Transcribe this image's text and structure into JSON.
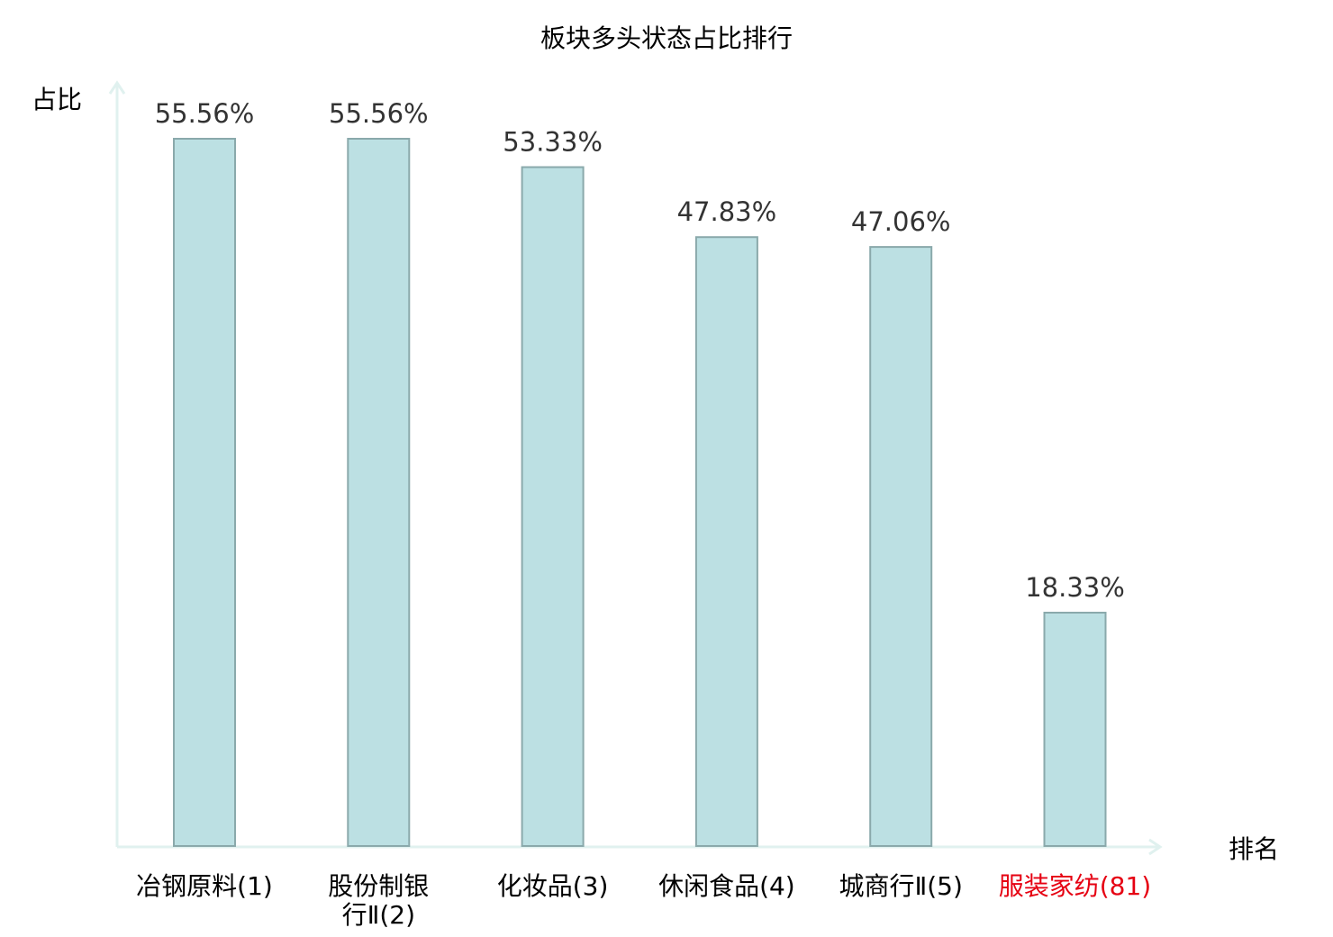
{
  "chart_data": {
    "type": "bar",
    "title": "板块多头状态占比排行",
    "ylabel": "占比",
    "xlabel": "排名",
    "categories": [
      [
        "冶钢原料(1)"
      ],
      [
        "股份制银",
        "行Ⅱ(2)"
      ],
      [
        "化妆品(3)"
      ],
      [
        "休闲食品(4)"
      ],
      [
        "城商行Ⅱ(5)"
      ],
      [
        "服装家纺(81)"
      ]
    ],
    "values": [
      55.56,
      55.56,
      53.33,
      47.83,
      47.06,
      18.33
    ],
    "value_labels": [
      "55.56%",
      "55.56%",
      "53.33%",
      "47.83%",
      "47.06%",
      "18.33%"
    ],
    "highlight_index": 5,
    "ylim": [
      0,
      55.56
    ],
    "grid": false,
    "colors": {
      "bar_fill": "#bce0e3",
      "bar_stroke": "#8aa9ab",
      "axis": "#e0f1ef",
      "text": "#000000",
      "value_text": "#333333",
      "highlight": "#e60012"
    }
  }
}
